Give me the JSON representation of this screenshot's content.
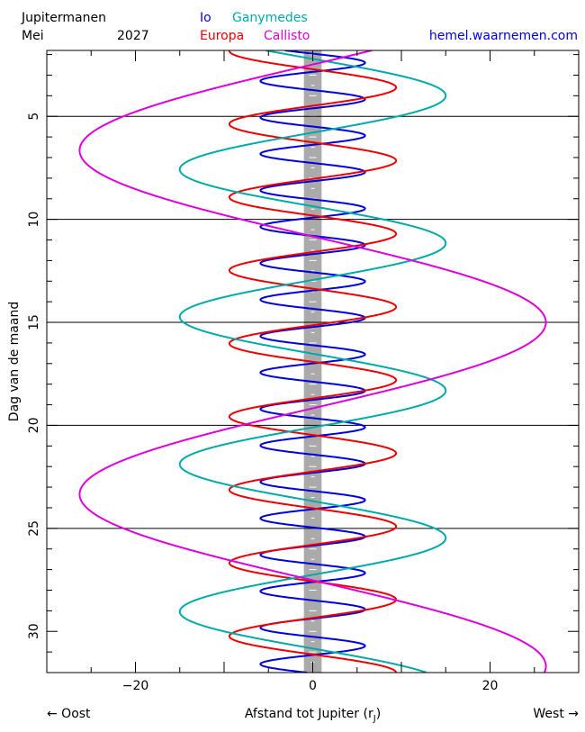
{
  "header": {
    "title": "Jupitermanen",
    "month": "Mei",
    "year": "2027",
    "site": "hemel.waarnemen.com"
  },
  "chart_data": {
    "type": "line",
    "xlabel_main": "Afstand tot Jupiter (r",
    "xlabel_sub": "J",
    "xlabel_close": ")",
    "ylabel": "Dag van de maand",
    "left_direction": "← Oost",
    "right_direction": "West →",
    "xlim": [
      -30,
      30
    ],
    "ylim": [
      1.8,
      32.0
    ],
    "x_ticks": [
      -20,
      0,
      20
    ],
    "x_tick_labels": [
      "−20",
      "0",
      "20"
    ],
    "y_ticks": [
      5,
      10,
      15,
      20,
      25,
      30
    ],
    "y_tick_labels": [
      "5",
      "10",
      "15",
      "20",
      "25",
      "30"
    ],
    "grid_days": [
      5,
      10,
      15,
      20,
      25
    ],
    "jupiter_radius": 1,
    "series": [
      {
        "name": "Io",
        "color": "#0000dd",
        "amplitude": 5.9,
        "period_days": 1.769,
        "phase_day": 2.4
      },
      {
        "name": "Europa",
        "color": "#ee0000",
        "amplitude": 9.4,
        "period_days": 3.551,
        "phase_day": 3.6
      },
      {
        "name": "Ganymedes",
        "color": "#00aaaa",
        "amplitude": 15.0,
        "period_days": 7.155,
        "phase_day": 4.0
      },
      {
        "name": "Callisto",
        "color": "#dd00dd",
        "amplitude": 26.3,
        "period_days": 16.69,
        "phase_day": 15.0
      }
    ]
  }
}
